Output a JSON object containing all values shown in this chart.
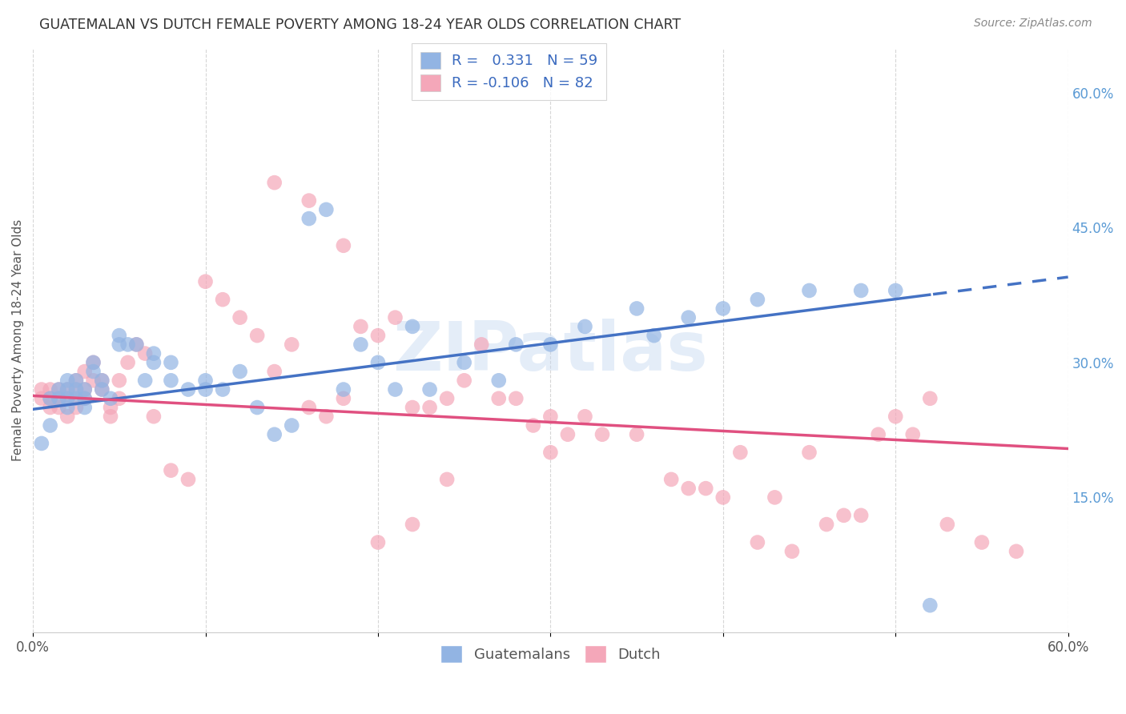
{
  "title": "GUATEMALAN VS DUTCH FEMALE POVERTY AMONG 18-24 YEAR OLDS CORRELATION CHART",
  "source": "Source: ZipAtlas.com",
  "ylabel": "Female Poverty Among 18-24 Year Olds",
  "xlim": [
    0.0,
    0.6
  ],
  "ylim": [
    0.0,
    0.65
  ],
  "y_ticks_right": [
    0.15,
    0.3,
    0.45,
    0.6
  ],
  "y_tick_labels_right": [
    "15.0%",
    "30.0%",
    "45.0%",
    "60.0%"
  ],
  "guatemalan_color": "#92b4e3",
  "dutch_color": "#f4a7b9",
  "guatemalan_R": 0.331,
  "guatemalan_N": 59,
  "dutch_R": -0.106,
  "dutch_N": 82,
  "trend_guatemalan_color": "#4472c4",
  "trend_dutch_color": "#e05080",
  "watermark": "ZIPatlas",
  "guatemalan_x": [
    0.005,
    0.01,
    0.01,
    0.015,
    0.015,
    0.02,
    0.02,
    0.02,
    0.02,
    0.025,
    0.025,
    0.025,
    0.03,
    0.03,
    0.03,
    0.035,
    0.035,
    0.04,
    0.04,
    0.045,
    0.05,
    0.05,
    0.055,
    0.06,
    0.065,
    0.07,
    0.07,
    0.08,
    0.08,
    0.09,
    0.1,
    0.1,
    0.11,
    0.12,
    0.13,
    0.14,
    0.15,
    0.16,
    0.17,
    0.18,
    0.19,
    0.2,
    0.21,
    0.22,
    0.23,
    0.25,
    0.27,
    0.28,
    0.3,
    0.32,
    0.35,
    0.36,
    0.38,
    0.4,
    0.42,
    0.45,
    0.48,
    0.5,
    0.52
  ],
  "guatemalan_y": [
    0.21,
    0.23,
    0.26,
    0.26,
    0.27,
    0.25,
    0.26,
    0.27,
    0.28,
    0.26,
    0.27,
    0.28,
    0.25,
    0.26,
    0.27,
    0.29,
    0.3,
    0.27,
    0.28,
    0.26,
    0.32,
    0.33,
    0.32,
    0.32,
    0.28,
    0.3,
    0.31,
    0.28,
    0.3,
    0.27,
    0.27,
    0.28,
    0.27,
    0.29,
    0.25,
    0.22,
    0.23,
    0.46,
    0.47,
    0.27,
    0.32,
    0.3,
    0.27,
    0.34,
    0.27,
    0.3,
    0.28,
    0.32,
    0.32,
    0.34,
    0.36,
    0.33,
    0.35,
    0.36,
    0.37,
    0.38,
    0.38,
    0.38,
    0.03
  ],
  "dutch_x": [
    0.005,
    0.005,
    0.01,
    0.01,
    0.01,
    0.015,
    0.015,
    0.015,
    0.02,
    0.02,
    0.02,
    0.025,
    0.025,
    0.025,
    0.03,
    0.03,
    0.03,
    0.035,
    0.035,
    0.04,
    0.04,
    0.045,
    0.045,
    0.05,
    0.05,
    0.055,
    0.06,
    0.065,
    0.07,
    0.08,
    0.09,
    0.1,
    0.11,
    0.12,
    0.13,
    0.14,
    0.15,
    0.16,
    0.17,
    0.18,
    0.19,
    0.2,
    0.21,
    0.22,
    0.23,
    0.24,
    0.25,
    0.26,
    0.27,
    0.28,
    0.29,
    0.3,
    0.31,
    0.32,
    0.33,
    0.35,
    0.37,
    0.39,
    0.41,
    0.43,
    0.45,
    0.47,
    0.49,
    0.51,
    0.53,
    0.55,
    0.57,
    0.14,
    0.16,
    0.18,
    0.5,
    0.52,
    0.2,
    0.22,
    0.38,
    0.4,
    0.42,
    0.44,
    0.3,
    0.24,
    0.46,
    0.48
  ],
  "dutch_y": [
    0.26,
    0.27,
    0.26,
    0.27,
    0.25,
    0.27,
    0.26,
    0.25,
    0.27,
    0.26,
    0.24,
    0.28,
    0.27,
    0.25,
    0.29,
    0.27,
    0.26,
    0.3,
    0.28,
    0.28,
    0.27,
    0.25,
    0.24,
    0.28,
    0.26,
    0.3,
    0.32,
    0.31,
    0.24,
    0.18,
    0.17,
    0.39,
    0.37,
    0.35,
    0.33,
    0.29,
    0.32,
    0.25,
    0.24,
    0.26,
    0.34,
    0.33,
    0.35,
    0.25,
    0.25,
    0.26,
    0.28,
    0.32,
    0.26,
    0.26,
    0.23,
    0.24,
    0.22,
    0.24,
    0.22,
    0.22,
    0.17,
    0.16,
    0.2,
    0.15,
    0.2,
    0.13,
    0.22,
    0.22,
    0.12,
    0.1,
    0.09,
    0.5,
    0.48,
    0.43,
    0.24,
    0.26,
    0.1,
    0.12,
    0.16,
    0.15,
    0.1,
    0.09,
    0.2,
    0.17,
    0.12,
    0.13
  ]
}
